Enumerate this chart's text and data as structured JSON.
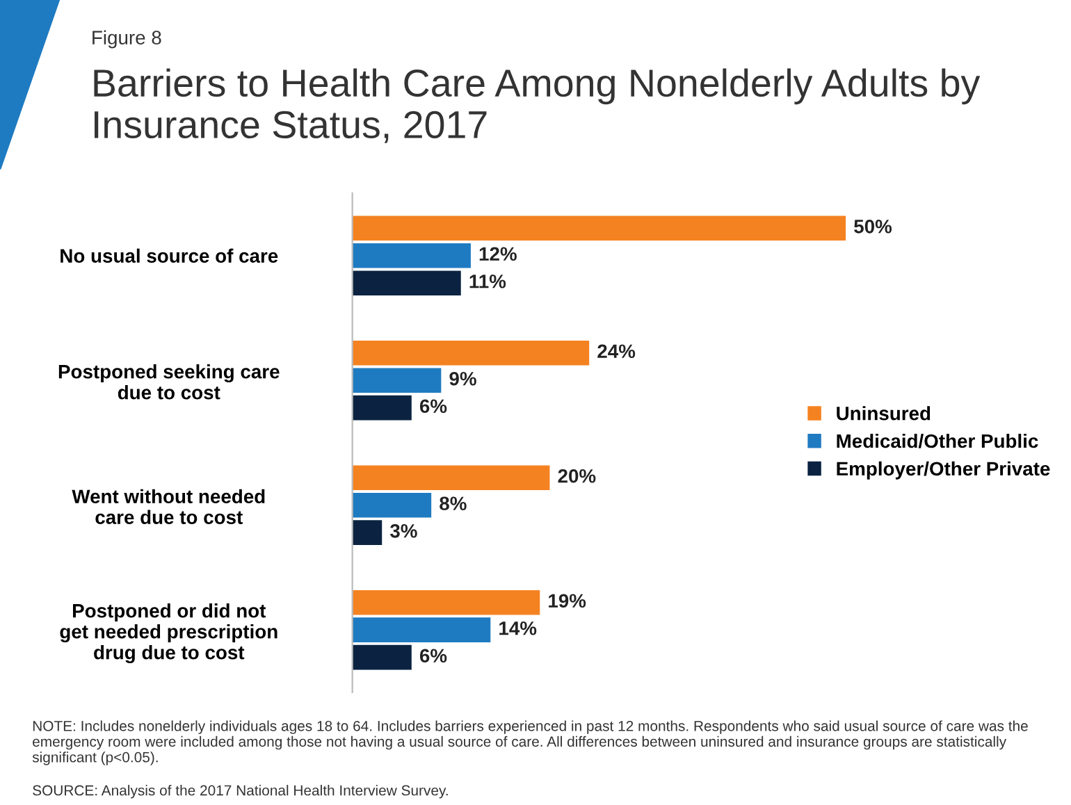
{
  "chart_data": {
    "type": "bar",
    "orientation": "horizontal",
    "title": "Barriers to Health Care Among Nonelderly Adults by Insurance Status, 2017",
    "categories": [
      "No usual source of care",
      "Postponed seeking care\ndue to cost",
      "Went without needed\ncare due to cost",
      "Postponed or did not\nget needed prescription\ndrug due to cost"
    ],
    "series": [
      {
        "name": "Uninsured",
        "color": "#f58220",
        "values": [
          50,
          24,
          20,
          19
        ],
        "value_labels": [
          "50%",
          "24%",
          "20%",
          "19%"
        ]
      },
      {
        "name": "Medicaid/Other Public",
        "color": "#1f7bc1",
        "values": [
          12,
          9,
          8,
          14
        ],
        "value_labels": [
          "12%",
          "9%",
          "8%",
          "14%"
        ]
      },
      {
        "name": "Employer/Other Private",
        "color": "#0b2341",
        "values": [
          11,
          6,
          3,
          6
        ],
        "value_labels": [
          "11%",
          "6%",
          "3%",
          "6%"
        ]
      }
    ],
    "legend": "right",
    "annotations": [
      "Figure 8",
      "NOTE: Includes nonelderly individuals ages 18 to 64. Includes barriers experienced in past 12 months. Respondents who said usual source of care was the emergency room were included among those not having a usual source of care. All differences between uninsured and insurance groups are statistically significant (p<0.05).",
      "SOURCE: Analysis of the 2017 National Health Interview Survey."
    ]
  }
}
